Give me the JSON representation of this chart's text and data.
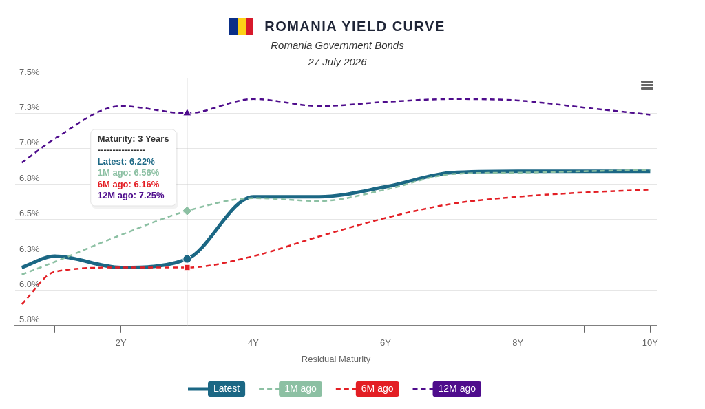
{
  "chart_data": {
    "type": "line",
    "title": "ROMANIA YIELD CURVE",
    "subtitle": "Romania Government Bonds\n27 July 2026",
    "xlabel": "Residual Maturity",
    "annotations": [
      "Maturity: 3 Years",
      "----------------",
      "Latest: 6.22%",
      "1M ago: 6.56%",
      "6M ago: 6.16%",
      "12M ago: 7.25%"
    ],
    "x": [
      0.5,
      1,
      2,
      3,
      4,
      5,
      6,
      7,
      8,
      9,
      10
    ],
    "series": [
      {
        "name": "Latest",
        "color": "#1b6784",
        "line_style": "solid",
        "values": [
          6.16,
          6.24,
          6.16,
          6.22,
          6.66,
          6.66,
          6.73,
          6.83,
          6.84,
          6.84,
          6.84
        ]
      },
      {
        "name": "1M ago",
        "color": "#8cc0a3",
        "line_style": "dashed",
        "values": [
          6.11,
          6.2,
          6.39,
          6.56,
          6.65,
          6.63,
          6.71,
          6.82,
          6.83,
          6.84,
          6.85
        ]
      },
      {
        "name": "6M ago",
        "color": "#e31e24",
        "line_style": "dashed",
        "values": [
          5.9,
          6.13,
          6.16,
          6.16,
          6.24,
          6.38,
          6.51,
          6.61,
          6.66,
          6.69,
          6.71
        ]
      },
      {
        "name": "12M ago",
        "color": "#4e0c8c",
        "line_style": "dashed",
        "values": [
          6.9,
          7.07,
          7.3,
          7.25,
          7.35,
          7.3,
          7.33,
          7.35,
          7.34,
          7.29,
          7.24
        ]
      },
      {
        "type": "scatter",
        "color": "#1b6784",
        "marker": "circle",
        "values": [
          null,
          null,
          null,
          6.22,
          null,
          null,
          null,
          null,
          null,
          null,
          null
        ]
      },
      {
        "type": "scatter",
        "color": "#8cc0a3",
        "marker": "diamond",
        "values": [
          null,
          null,
          null,
          6.56,
          null,
          null,
          null,
          null,
          null,
          null,
          null
        ]
      },
      {
        "type": "scatter",
        "color": "#e31e24",
        "marker": "square",
        "values": [
          null,
          null,
          null,
          6.16,
          null,
          null,
          null,
          null,
          null,
          null,
          null
        ]
      },
      {
        "type": "scatter",
        "color": "#4e0c8c",
        "marker": "triangle",
        "values": [
          null,
          null,
          null,
          7.25,
          null,
          null,
          null,
          null,
          null,
          null,
          null
        ]
      }
    ],
    "xlim": [
      0.4,
      10.1
    ],
    "xticks": [
      {
        "value": 1,
        "label": null
      },
      {
        "value": 2,
        "label": "2Y"
      },
      {
        "value": 3,
        "label": null
      },
      {
        "value": 4,
        "label": "4Y"
      },
      {
        "value": 5,
        "label": null
      },
      {
        "value": 6,
        "label": "6Y"
      },
      {
        "value": 7,
        "label": null
      },
      {
        "value": 8,
        "label": "8Y"
      },
      {
        "value": 9,
        "label": null
      },
      {
        "value": 10,
        "label": "10Y"
      }
    ],
    "ylim": [
      5.75,
      7.5
    ],
    "yticks": [
      {
        "value": 5.75,
        "label": "5.8%"
      },
      {
        "value": 6.0,
        "label": "6.0%"
      },
      {
        "value": 6.25,
        "label": "6.3%"
      },
      {
        "value": 6.5,
        "label": "6.5%"
      },
      {
        "value": 6.75,
        "label": "6.8%"
      },
      {
        "value": 7.0,
        "label": "7.0%"
      },
      {
        "value": 7.25,
        "label": "7.3%"
      },
      {
        "value": 7.5,
        "label": "7.5%"
      }
    ],
    "grid": "y",
    "legend": "bottom",
    "ref_lines": [
      {
        "axis": "x",
        "value": 3,
        "color": "#cccccc"
      }
    ]
  }
}
